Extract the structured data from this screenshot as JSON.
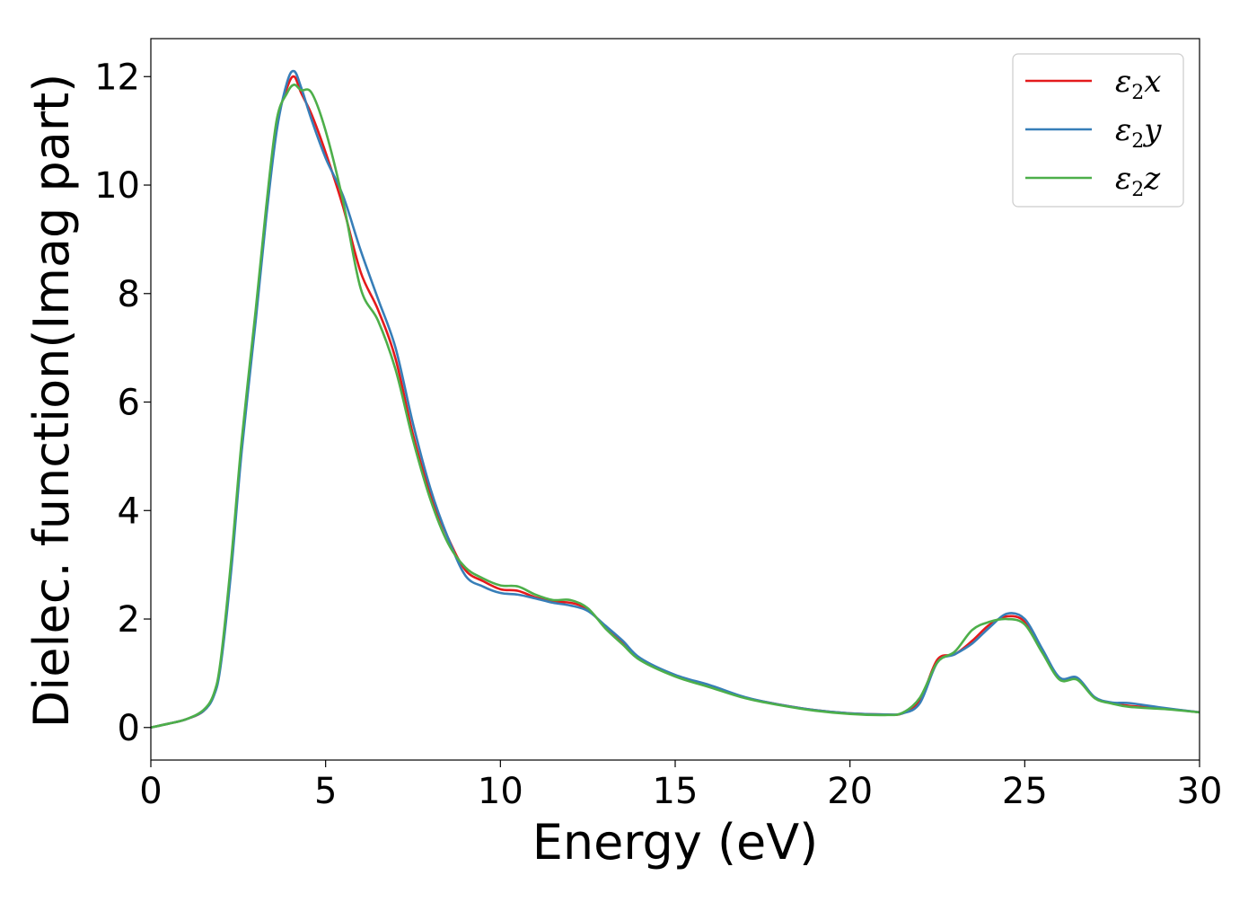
{
  "chart_data": {
    "type": "line",
    "title": "",
    "xlabel": "Energy (eV)",
    "ylabel": "Dielec. function(Imag part)",
    "xlim": [
      0,
      30
    ],
    "ylim": [
      -0.6,
      12.7
    ],
    "xticks": [
      0,
      5,
      10,
      15,
      20,
      25,
      30
    ],
    "xtick_labels": [
      "0",
      "5",
      "10",
      "15",
      "20",
      "25",
      "30"
    ],
    "yticks": [
      0,
      2,
      4,
      6,
      8,
      10,
      12
    ],
    "ytick_labels": [
      "0",
      "2",
      "4",
      "6",
      "8",
      "10",
      "12"
    ],
    "grid": false,
    "legend_position": "top-right",
    "x": [
      0,
      0.5,
      1.0,
      1.5,
      1.8,
      2.0,
      2.3,
      2.6,
      3.0,
      3.3,
      3.6,
      3.9,
      4.1,
      4.3,
      4.6,
      5.0,
      5.5,
      6.0,
      6.5,
      7.0,
      7.5,
      8.0,
      8.5,
      9.0,
      9.5,
      10.0,
      10.5,
      11.0,
      11.5,
      12.0,
      12.5,
      13.0,
      13.5,
      14.0,
      15.0,
      16.0,
      17.0,
      18.0,
      19.0,
      20.0,
      21.0,
      21.5,
      22.0,
      22.5,
      23.0,
      23.5,
      24.0,
      24.5,
      25.0,
      25.5,
      26.0,
      26.5,
      27.0,
      27.5,
      28.0,
      29.0,
      30.0
    ],
    "series": [
      {
        "name": "ε₂x",
        "legend_label": "ε",
        "legend_sub": "2",
        "legend_var": "x",
        "color": "#e41a1c",
        "values": [
          0.0,
          0.07,
          0.15,
          0.3,
          0.6,
          1.2,
          3.0,
          5.2,
          7.6,
          9.5,
          11.1,
          11.8,
          12.0,
          11.7,
          11.3,
          10.6,
          9.6,
          8.4,
          7.7,
          6.8,
          5.4,
          4.3,
          3.5,
          2.9,
          2.7,
          2.55,
          2.52,
          2.4,
          2.32,
          2.3,
          2.18,
          1.85,
          1.55,
          1.25,
          0.95,
          0.75,
          0.55,
          0.42,
          0.32,
          0.26,
          0.24,
          0.26,
          0.5,
          1.25,
          1.35,
          1.6,
          1.9,
          2.05,
          1.95,
          1.4,
          0.9,
          0.9,
          0.55,
          0.45,
          0.4,
          0.35,
          0.28
        ]
      },
      {
        "name": "ε₂y",
        "legend_label": "ε",
        "legend_sub": "2",
        "legend_var": "y",
        "color": "#377eb8",
        "values": [
          0.0,
          0.07,
          0.15,
          0.3,
          0.58,
          1.15,
          2.9,
          5.1,
          7.5,
          9.4,
          11.0,
          11.9,
          12.1,
          11.8,
          11.2,
          10.5,
          9.8,
          8.8,
          7.9,
          7.0,
          5.6,
          4.4,
          3.5,
          2.8,
          2.6,
          2.48,
          2.45,
          2.38,
          2.3,
          2.25,
          2.15,
          1.88,
          1.6,
          1.28,
          0.97,
          0.78,
          0.56,
          0.42,
          0.32,
          0.26,
          0.24,
          0.26,
          0.45,
          1.2,
          1.35,
          1.55,
          1.85,
          2.1,
          2.0,
          1.45,
          0.92,
          0.92,
          0.56,
          0.46,
          0.45,
          0.36,
          0.28
        ]
      },
      {
        "name": "ε₂z",
        "legend_label": "ε",
        "legend_sub": "2",
        "legend_var": "z",
        "color": "#4daf4a",
        "values": [
          0.0,
          0.07,
          0.15,
          0.32,
          0.62,
          1.25,
          3.1,
          5.3,
          7.7,
          9.6,
          11.2,
          11.7,
          11.85,
          11.75,
          11.7,
          11.0,
          9.7,
          8.1,
          7.5,
          6.6,
          5.3,
          4.2,
          3.4,
          2.95,
          2.75,
          2.62,
          2.6,
          2.45,
          2.35,
          2.35,
          2.2,
          1.83,
          1.53,
          1.24,
          0.94,
          0.74,
          0.54,
          0.41,
          0.31,
          0.25,
          0.23,
          0.27,
          0.55,
          1.2,
          1.4,
          1.8,
          1.95,
          2.0,
          1.9,
          1.38,
          0.88,
          0.88,
          0.54,
          0.44,
          0.38,
          0.34,
          0.28
        ]
      }
    ]
  }
}
